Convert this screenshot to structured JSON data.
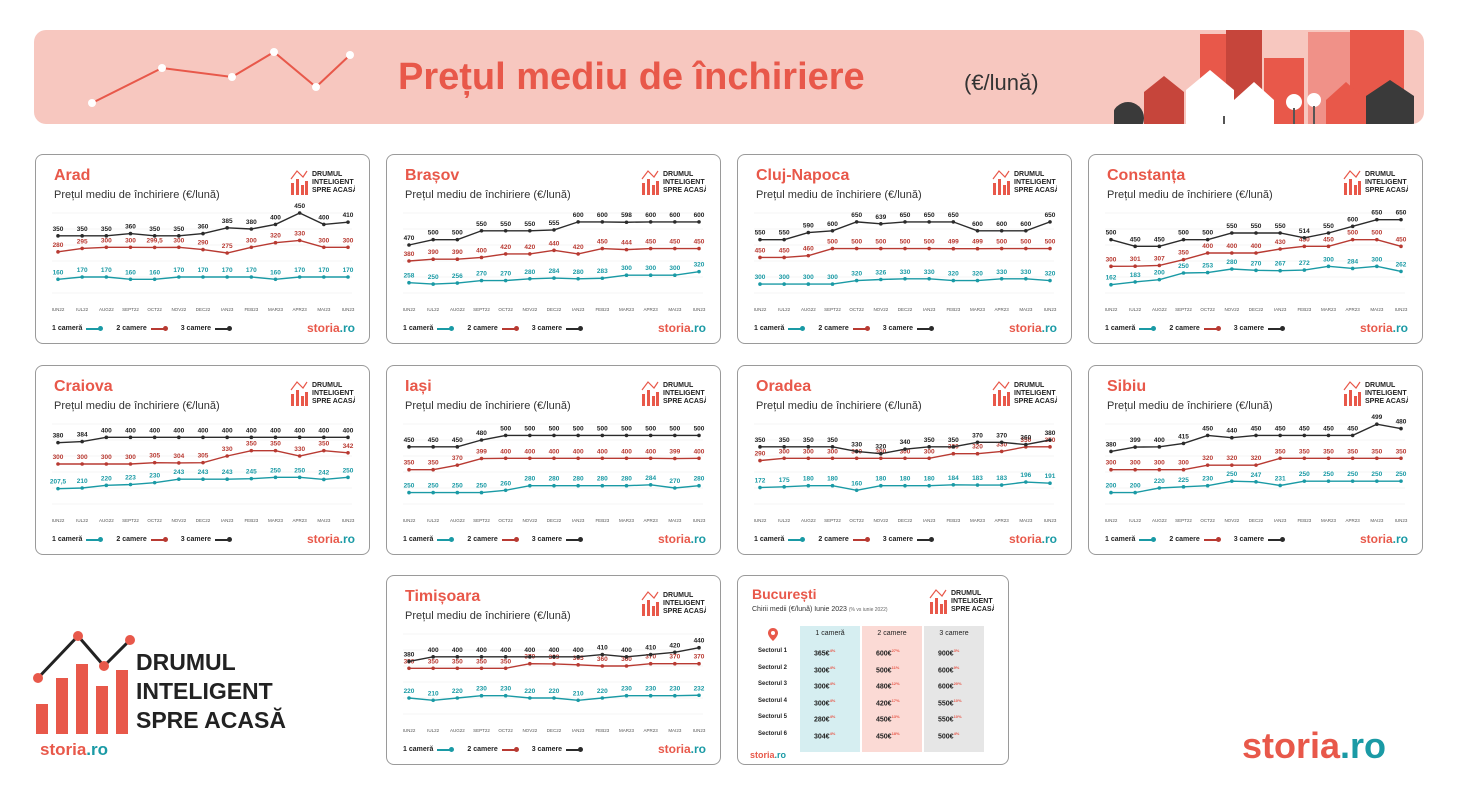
{
  "banner": {
    "title": "Prețul mediu de închiriere",
    "unit": "(€/lună)"
  },
  "colors": {
    "accent": "#e8584a",
    "teal": "#1a9aa5",
    "red_line": "#b83a32",
    "black_line": "#2b2b2b",
    "banner_bg": "#f7c7bf"
  },
  "subtitle": "Prețul mediu de închiriere (€/lună)",
  "legend": {
    "one": "1 cameră",
    "two": "2 camere",
    "three": "3 camere"
  },
  "brand": {
    "line1": "DRUMUL",
    "line2": "INTELIGENT",
    "line3": "SPRE ACASĂ",
    "storia": "storia",
    "ro": ".ro"
  },
  "chart_data": [
    {
      "type": "line",
      "title": "Arad",
      "categories": [
        "IUN22",
        "IUL22",
        "AUG22",
        "SEPT22",
        "OCT22",
        "NOV22",
        "DEC22",
        "IAN23",
        "FEB23",
        "MAR23",
        "APR23",
        "MAI23",
        "IUN23"
      ],
      "ylim": [
        100,
        450
      ],
      "series": [
        {
          "name": "1 cameră",
          "values": [
            160,
            170,
            170,
            160,
            160,
            170,
            170,
            170,
            170,
            160,
            170,
            170,
            170
          ]
        },
        {
          "name": "2 camere",
          "values": [
            280,
            295,
            300,
            300,
            299.5,
            300,
            290,
            275,
            300,
            320,
            330,
            300,
            300
          ]
        },
        {
          "name": "3 camere",
          "values": [
            350,
            350,
            350,
            360,
            350,
            350,
            360,
            385,
            380,
            400,
            450,
            400,
            410
          ]
        }
      ]
    },
    {
      "type": "line",
      "title": "Brașov",
      "categories": [
        "IUN22",
        "IUL22",
        "AUG22",
        "SEPT22",
        "OCT22",
        "NOV22",
        "DEC22",
        "IAN23",
        "FEB23",
        "MAR23",
        "APR23",
        "MAI23",
        "IUN23"
      ],
      "ylim": [
        200,
        650
      ],
      "series": [
        {
          "name": "1 cameră",
          "values": [
            258,
            250,
            256,
            270,
            270,
            280,
            284,
            280,
            283,
            300,
            300,
            300,
            320
          ]
        },
        {
          "name": "2 camere",
          "values": [
            380,
            390,
            390,
            400,
            420,
            420,
            440,
            420,
            450,
            444,
            450,
            450,
            450
          ]
        },
        {
          "name": "3 camere",
          "values": [
            470,
            500,
            500,
            550,
            550,
            550,
            555,
            600,
            600,
            598,
            600,
            600,
            600
          ]
        }
      ]
    },
    {
      "type": "line",
      "title": "Cluj-Napoca",
      "categories": [
        "IUN22",
        "IUL22",
        "AUG22",
        "SEPT22",
        "OCT22",
        "NOV22",
        "DEC22",
        "IAN23",
        "FEB23",
        "MAR23",
        "APR23",
        "MAI23",
        "IUN23"
      ],
      "ylim": [
        250,
        700
      ],
      "series": [
        {
          "name": "1 cameră",
          "values": [
            300,
            300,
            300,
            300,
            320,
            326,
            330,
            330,
            320,
            320,
            330,
            330,
            320
          ]
        },
        {
          "name": "2 camere",
          "values": [
            450,
            450,
            460,
            500,
            500,
            500,
            500,
            500,
            499,
            499,
            500,
            500,
            500
          ]
        },
        {
          "name": "3 camere",
          "values": [
            550,
            550,
            590,
            600,
            650,
            639,
            650,
            650,
            650,
            600,
            600,
            600,
            650
          ]
        }
      ]
    },
    {
      "type": "line",
      "title": "Constanța",
      "categories": [
        "IUN22",
        "IUL22",
        "AUG22",
        "SEPT22",
        "OCT22",
        "NOV22",
        "DEC22",
        "IAN23",
        "FEB23",
        "MAR23",
        "APR23",
        "MAI23",
        "IUN23"
      ],
      "ylim": [
        100,
        700
      ],
      "series": [
        {
          "name": "1 cameră",
          "values": [
            162,
            183,
            200,
            250,
            253,
            280,
            270,
            267,
            272,
            300,
            284,
            300,
            262
          ]
        },
        {
          "name": "2 camere",
          "values": [
            300,
            301,
            307,
            350,
            400,
            400,
            400,
            430,
            450,
            450,
            500,
            500,
            450
          ]
        },
        {
          "name": "3 camere",
          "values": [
            500,
            450,
            450,
            500,
            500,
            550,
            550,
            550,
            514,
            550,
            600,
            650,
            650
          ]
        }
      ]
    },
    {
      "type": "line",
      "title": "Craiova",
      "categories": [
        "IUN22",
        "IUL22",
        "AUG22",
        "SEPT22",
        "OCT22",
        "NOV22",
        "DEC22",
        "IAN23",
        "FEB23",
        "MAR23",
        "APR23",
        "MAI23",
        "IUN23"
      ],
      "ylim": [
        150,
        450
      ],
      "series": [
        {
          "name": "1 cameră",
          "values": [
            207.5,
            210,
            220,
            223,
            230,
            243,
            243,
            243,
            245,
            250,
            250,
            242,
            250
          ]
        },
        {
          "name": "2 camere",
          "values": [
            300,
            300,
            300,
            300,
            305,
            304,
            305,
            330,
            350,
            350,
            330,
            350,
            342
          ]
        },
        {
          "name": "3 camere",
          "values": [
            380,
            384,
            400,
            400,
            400,
            400,
            400,
            400,
            400,
            400,
            400,
            400,
            400
          ]
        }
      ]
    },
    {
      "type": "line",
      "title": "Iași",
      "categories": [
        "IUN22",
        "IUL22",
        "AUG22",
        "SEPT22",
        "OCT22",
        "NOV22",
        "DEC22",
        "IAN23",
        "FEB23",
        "MAR23",
        "APR23",
        "MAI23",
        "IUN23"
      ],
      "ylim": [
        200,
        550
      ],
      "series": [
        {
          "name": "1 cameră",
          "values": [
            250,
            250,
            250,
            250,
            260,
            280,
            280,
            280,
            280,
            280,
            284,
            270,
            280
          ]
        },
        {
          "name": "2 camere",
          "values": [
            350,
            350,
            370,
            399,
            400,
            400,
            400,
            400,
            400,
            400,
            400,
            399,
            400
          ]
        },
        {
          "name": "3 camere",
          "values": [
            450,
            450,
            450,
            480,
            500,
            500,
            500,
            500,
            500,
            500,
            500,
            500,
            500
          ]
        }
      ]
    },
    {
      "type": "line",
      "title": "Oradea",
      "categories": [
        "IUN22",
        "IUL22",
        "AUG22",
        "SEPT22",
        "OCT22",
        "NOV22",
        "DEC22",
        "IAN23",
        "FEB23",
        "MAR23",
        "APR23",
        "MAI23",
        "IUN23"
      ],
      "ylim": [
        100,
        450
      ],
      "series": [
        {
          "name": "1 cameră",
          "values": [
            172,
            175,
            180,
            180,
            160,
            180,
            180,
            180,
            184,
            183,
            183,
            196,
            191
          ]
        },
        {
          "name": "2 camere",
          "values": [
            290,
            300,
            300,
            300,
            300,
            300,
            300,
            300,
            320,
            320,
            330,
            350,
            350
          ]
        },
        {
          "name": "3 camere",
          "values": [
            350,
            350,
            350,
            350,
            330,
            320,
            340,
            350,
            350,
            370,
            370,
            360,
            380
          ]
        }
      ]
    },
    {
      "type": "line",
      "title": "Sibiu",
      "categories": [
        "IUN22",
        "IUL22",
        "AUG22",
        "SEPT22",
        "OCT22",
        "NOV22",
        "DEC22",
        "IAN23",
        "FEB23",
        "MAR23",
        "APR23",
        "MAI23",
        "IUN23"
      ],
      "ylim": [
        150,
        500
      ],
      "series": [
        {
          "name": "1 cameră",
          "values": [
            200,
            200,
            220,
            225,
            230,
            250,
            247,
            231,
            250,
            250,
            250,
            250,
            250
          ]
        },
        {
          "name": "2 camere",
          "values": [
            300,
            300,
            300,
            300,
            320,
            320,
            320,
            350,
            350,
            350,
            350,
            350,
            350
          ]
        },
        {
          "name": "3 camere",
          "values": [
            380,
            399,
            400,
            415,
            450,
            440,
            450,
            450,
            450,
            450,
            450,
            499,
            480
          ]
        }
      ]
    },
    {
      "type": "line",
      "title": "Timișoara",
      "categories": [
        "IUN22",
        "IUL22",
        "AUG22",
        "SEPT22",
        "OCT22",
        "NOV22",
        "DEC22",
        "IAN23",
        "FEB23",
        "MAR23",
        "APR23",
        "MAI23",
        "IUN23"
      ],
      "ylim": [
        150,
        500
      ],
      "series": [
        {
          "name": "1 cameră",
          "values": [
            220,
            210,
            220,
            230,
            230,
            220,
            220,
            210,
            220,
            230,
            230,
            230,
            232
          ]
        },
        {
          "name": "2 camere",
          "values": [
            350,
            350,
            350,
            350,
            350,
            370,
            369,
            365,
            360,
            360,
            370,
            370,
            370
          ]
        },
        {
          "name": "3 camere",
          "values": [
            380,
            400,
            400,
            400,
            400,
            400,
            400,
            400,
            410,
            400,
            410,
            420,
            440
          ]
        }
      ]
    },
    {
      "type": "table",
      "title": "București",
      "subtitle": "Chirii medii (€/lună) Iunie 2023",
      "subtitle_note": "(% vs iunie 2022)",
      "columns": [
        "1 cameră",
        "2 camere",
        "3 camere"
      ],
      "rows": [
        {
          "label": "Sectorul 1",
          "values": [
            "365€",
            "600€",
            "900€"
          ],
          "deltas": [
            "4%",
            "27%",
            "3%"
          ]
        },
        {
          "label": "Sectorul 2",
          "values": [
            "300€",
            "500€",
            "600€"
          ],
          "deltas": [
            "4%",
            "11%",
            "9%"
          ]
        },
        {
          "label": "Sectorul 3",
          "values": [
            "300€",
            "480€",
            "600€"
          ],
          "deltas": [
            "4%",
            "12%",
            "20%"
          ]
        },
        {
          "label": "Sectorul 4",
          "values": [
            "300€",
            "420€",
            "550€"
          ],
          "deltas": [
            "4%",
            "17%",
            "10%"
          ]
        },
        {
          "label": "Sectorul 5",
          "values": [
            "280€",
            "450€",
            "550€"
          ],
          "deltas": [
            "4%",
            "13%",
            "10%"
          ]
        },
        {
          "label": "Sectorul 6",
          "values": [
            "304€",
            "450€",
            "500€"
          ],
          "deltas": [
            "4%",
            "18%",
            "4%"
          ]
        }
      ]
    }
  ]
}
